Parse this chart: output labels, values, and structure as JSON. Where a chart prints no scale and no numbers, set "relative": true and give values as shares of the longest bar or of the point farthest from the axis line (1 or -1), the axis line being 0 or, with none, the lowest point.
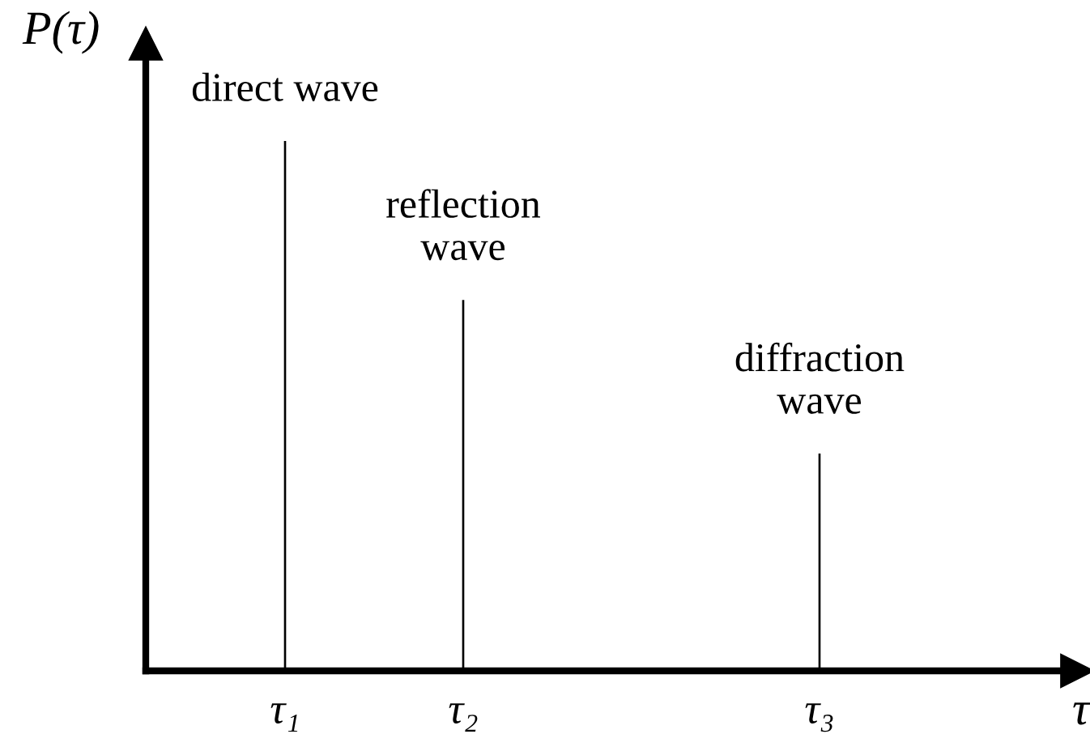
{
  "chart_data": {
    "type": "bar",
    "relative": true,
    "categories": [
      "τ₁",
      "τ₂",
      null,
      "τ₃",
      null
    ],
    "values": [
      1,
      0.7,
      null,
      0.41,
      null
    ],
    "color": "#000000",
    "xlabel": "τ",
    "ylabel": "P(τ)",
    "annotations": [
      {
        "text": "direct wave",
        "x": "τ₁",
        "y": 1
      },
      {
        "text": "reflection\nwave",
        "x": "τ₂",
        "y": 0.7
      },
      {
        "text": "diffraction\nwave",
        "x": "τ₃",
        "y": 0.41
      }
    ],
    "grid": false,
    "legend": false
  }
}
